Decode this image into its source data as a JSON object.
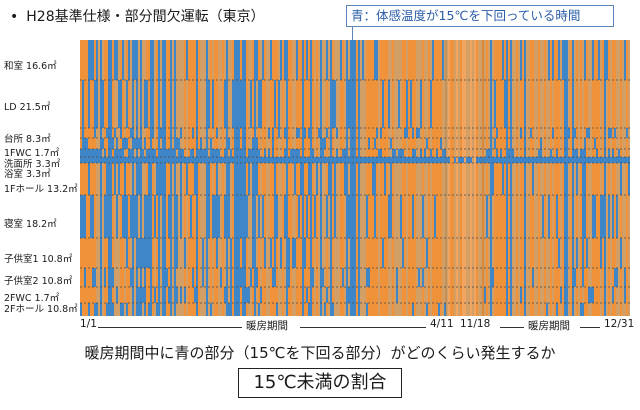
{
  "header": {
    "bullet": "•",
    "title": "H28基準仕様・部分間欠運転（東京）"
  },
  "legend": {
    "text": "青：体感温度が15℃を下回っている時間"
  },
  "rooms": [
    {
      "name": "和室",
      "area": "16.6㎡"
    },
    {
      "name": "LD",
      "area": "21.5㎡"
    },
    {
      "name": "台所",
      "area": "8.3㎡"
    },
    {
      "name": "1FWC",
      "area": "1.7㎡"
    },
    {
      "name": "洗面所",
      "area": "3.3㎡"
    },
    {
      "name": "浴室",
      "area": "3.3㎡"
    },
    {
      "name": "1Fホール",
      "area": "13.2㎡"
    },
    {
      "name": "寝室",
      "area": "18.2㎡"
    },
    {
      "name": "子供室1",
      "area": "10.8㎡"
    },
    {
      "name": "子供室2",
      "area": "10.8㎡"
    },
    {
      "name": "2FWC",
      "area": "1.7㎡"
    },
    {
      "name": "2Fホール",
      "area": "10.8㎡"
    }
  ],
  "x_axis": {
    "start": "1/1",
    "heating_label_1": "暖房期間",
    "mark_1": "4/11",
    "mark_2": "11/18",
    "heating_label_2": "暖房期間",
    "end": "12/31"
  },
  "caption": "暖房期間中に青の部分（15℃を下回る部分）がどのくらい発生するか",
  "boxed_label": "15℃未満の割合",
  "colors": {
    "cold": "#3f86c8",
    "warm": "#f0923a",
    "mixed": "#b9aa8c",
    "pale": "#f3b27a",
    "divider": "#4a4a4a"
  },
  "chart_data": {
    "type": "heatmap",
    "x_start": "1/1",
    "x_end": "12/31",
    "heating_periods": [
      [
        "1/1",
        "4/11"
      ],
      [
        "11/18",
        "12/31"
      ]
    ],
    "rows": [
      "和室",
      "LD",
      "台所",
      "1FWC",
      "洗面所",
      "浴室",
      "1Fホール",
      "寝室",
      "子供室1",
      "子供室2",
      "2FWC",
      "2Fホール"
    ],
    "cell_value": "体感温度が15℃を下回っているか（青）"
  }
}
